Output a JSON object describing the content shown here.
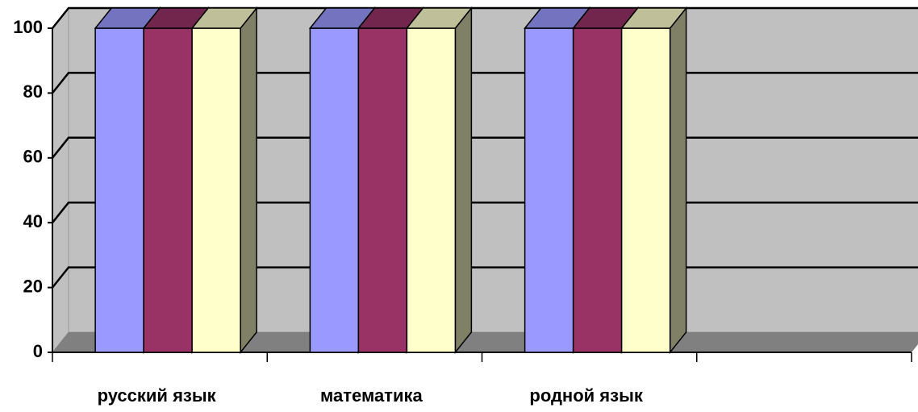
{
  "chart_data": {
    "type": "bar3d",
    "categories": [
      "русский язык",
      "математика",
      "родной язык",
      null
    ],
    "series": [
      {
        "color": "#9999ff",
        "values": [
          100,
          100,
          100,
          null
        ]
      },
      {
        "color": "#993366",
        "values": [
          100,
          100,
          100,
          null
        ]
      },
      {
        "color": "#ffffcc",
        "values": [
          100,
          100,
          100,
          null
        ]
      }
    ],
    "ylim": [
      0,
      100
    ],
    "yticks": [
      0,
      20,
      40,
      60,
      80,
      100
    ],
    "grid": true
  }
}
